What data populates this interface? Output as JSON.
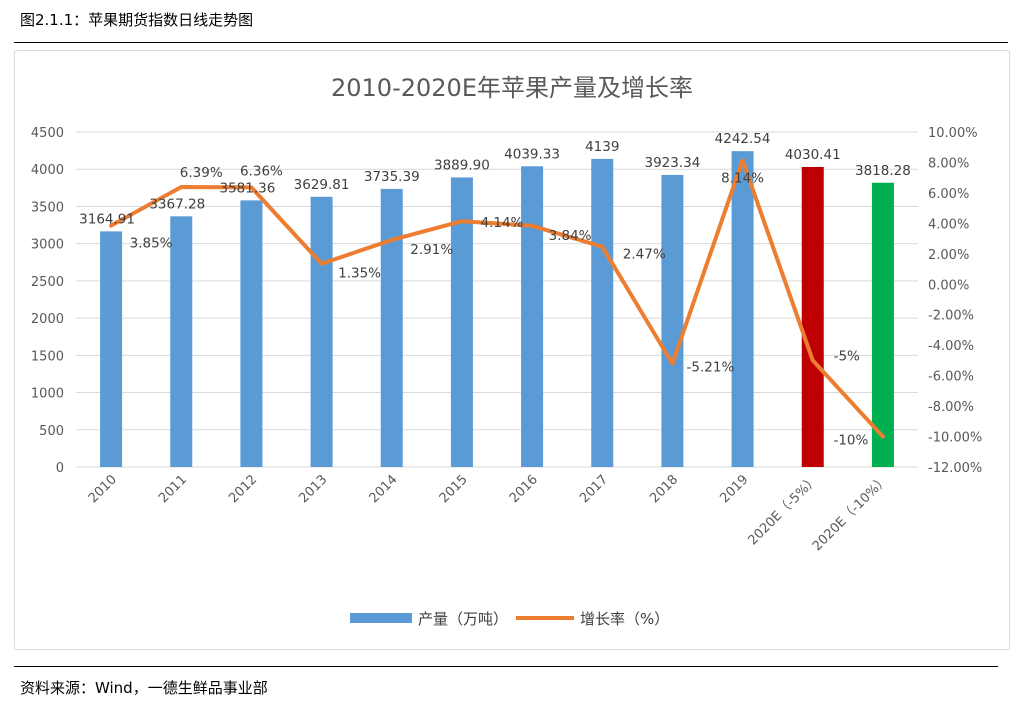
{
  "figure_title": "图2.1.1：苹果期货指数日线走势图",
  "source": "资料来源：Wind，一德生鲜品事业部",
  "chart_data": {
    "type": "bar+line",
    "title": "2010-2020E年苹果产量及增长率",
    "categories": [
      "2010",
      "2011",
      "2012",
      "2013",
      "2014",
      "2015",
      "2016",
      "2017",
      "2018",
      "2019",
      "2020E（-5%）",
      "2020E（-10%）"
    ],
    "series": [
      {
        "name": "产量（万吨）",
        "type": "bar",
        "axis": "left",
        "values": [
          3164.91,
          3367.28,
          3581.36,
          3629.81,
          3735.39,
          3889.9,
          4039.33,
          4139,
          3923.34,
          4242.54,
          4030.41,
          3818.28
        ],
        "labels": [
          "3164.91",
          "3367.28",
          "3581.36",
          "3629.81",
          "3735.39",
          "3889.90",
          "4039.33",
          "4139",
          "3923.34",
          "4242.54",
          "4030.41",
          "3818.28"
        ],
        "colors": [
          "#5b9bd5",
          "#5b9bd5",
          "#5b9bd5",
          "#5b9bd5",
          "#5b9bd5",
          "#5b9bd5",
          "#5b9bd5",
          "#5b9bd5",
          "#5b9bd5",
          "#5b9bd5",
          "#c00000",
          "#00b050"
        ]
      },
      {
        "name": "增长率（%）",
        "type": "line",
        "axis": "right",
        "color": "#ed7d31",
        "values": [
          3.85,
          6.39,
          6.36,
          1.35,
          2.91,
          4.14,
          3.84,
          2.47,
          -5.21,
          8.14,
          -5,
          -10
        ],
        "labels": [
          "3.85%",
          "6.39%",
          "6.36%",
          "1.35%",
          "2.91%",
          "4.14%",
          "3.84%",
          "2.47%",
          "-5.21%",
          "8.14%",
          "-5%",
          "-10%"
        ]
      }
    ],
    "ylim_left": [
      0,
      4500
    ],
    "yticks_left": [
      "0",
      "500",
      "1000",
      "1500",
      "2000",
      "2500",
      "3000",
      "3500",
      "4000",
      "4500"
    ],
    "ylim_right": [
      -12,
      10
    ],
    "yticks_right": [
      "-12.00%",
      "-10.00%",
      "-8.00%",
      "-6.00%",
      "-4.00%",
      "-2.00%",
      "0.00%",
      "2.00%",
      "4.00%",
      "6.00%",
      "8.00%",
      "10.00%"
    ],
    "grid": true,
    "legend": "bottom"
  }
}
